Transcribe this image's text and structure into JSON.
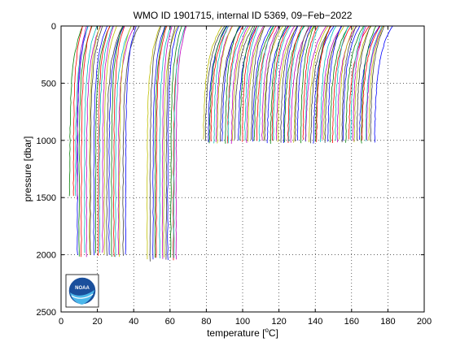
{
  "chart_data": {
    "type": "line",
    "title": "WMO ID 1901715, internal ID 5369, 09−Feb−2022",
    "xlabel_prefix": "temperature [",
    "xlabel_degree": "o",
    "xlabel_unit": "C]",
    "ylabel": "pressure [dbar]",
    "xlim": [
      0,
      200
    ],
    "ylim": [
      2500,
      0
    ],
    "y_reversed": true,
    "grid": true,
    "grid_style": "dotted",
    "legend": "none",
    "xticks": [
      "0",
      "20",
      "40",
      "60",
      "80",
      "100",
      "120",
      "140",
      "160",
      "180",
      "200"
    ],
    "yticks": [
      "0",
      "500",
      "1000",
      "1500",
      "2000",
      "2500"
    ],
    "xtick_values": [
      0,
      20,
      40,
      60,
      80,
      100,
      120,
      140,
      160,
      180,
      200
    ],
    "ytick_values": [
      0,
      500,
      1000,
      1500,
      2000,
      2500
    ],
    "series_colors": [
      "#0000ff",
      "#008000",
      "#ff0000",
      "#00bfbf",
      "#bf00bf",
      "#bfbf00",
      "#404040"
    ],
    "description_of_series": "Many vertical profiles, each offset horizontally; shallow portion curves right near the surface.",
    "profile_groups": [
      {
        "x_start": 9,
        "x_end": 35,
        "count": 22,
        "max_pressure": 2000,
        "surface_shift": 7
      },
      {
        "x_start": 5,
        "x_end": 9,
        "count": 4,
        "max_pressure": 1500,
        "surface_shift": 6
      },
      {
        "x_start": 48,
        "x_end": 64,
        "count": 14,
        "max_pressure": 2040,
        "surface_shift": 6
      },
      {
        "x_start": 78,
        "x_end": 172,
        "count": 80,
        "max_pressure": 1010,
        "surface_shift": 9
      }
    ]
  },
  "logo": {
    "text": "NOAA",
    "name": "noaa-logo"
  }
}
